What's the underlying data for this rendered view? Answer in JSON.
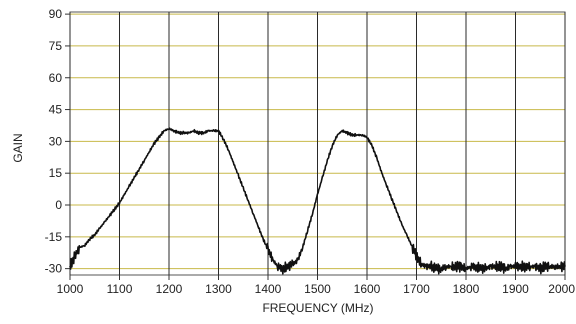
{
  "chart_data": {
    "type": "line",
    "title": "",
    "xlabel": "FREQUENCY (MHz)",
    "ylabel": "GAIN",
    "xlim": [
      1000,
      2000
    ],
    "ylim": [
      -33,
      91
    ],
    "x_ticks": [
      1000,
      1100,
      1200,
      1300,
      1400,
      1500,
      1600,
      1700,
      1800,
      1900,
      2000
    ],
    "y_ticks": [
      -30,
      -15,
      0,
      15,
      30,
      45,
      60,
      75,
      90
    ],
    "grid": true,
    "colors": {
      "plot_background": "#ffffff",
      "vertical_grid": "#2a2a2a",
      "horizontal_grid": "#c8b94a",
      "line": "#111111"
    },
    "series": [
      {
        "x": [
          1000,
          1010,
          1020,
          1030,
          1040,
          1050,
          1060,
          1070,
          1080,
          1090,
          1100,
          1110,
          1120,
          1130,
          1140,
          1150,
          1160,
          1170,
          1180,
          1190,
          1200,
          1210,
          1220,
          1230,
          1240,
          1250,
          1260,
          1270,
          1280,
          1290,
          1300,
          1310,
          1320,
          1330,
          1340,
          1350,
          1360,
          1370,
          1380,
          1390,
          1400,
          1410,
          1420,
          1430,
          1440,
          1450,
          1460,
          1470,
          1480,
          1490,
          1500,
          1510,
          1520,
          1530,
          1540,
          1550,
          1560,
          1570,
          1580,
          1590,
          1600,
          1610,
          1620,
          1630,
          1640,
          1650,
          1660,
          1670,
          1680,
          1690,
          1700,
          1710,
          1720,
          1730,
          1740,
          1750,
          1760,
          1770,
          1780,
          1790,
          1800,
          1810,
          1820,
          1830,
          1840,
          1850,
          1860,
          1870,
          1880,
          1890,
          1900,
          1910,
          1920,
          1930,
          1940,
          1950,
          1960,
          1970,
          1980,
          1990,
          2000
        ],
        "y": [
          -29,
          -24,
          -20,
          -19,
          -16,
          -14,
          -11,
          -8,
          -5,
          -2,
          1,
          5,
          9,
          13,
          17,
          21,
          25,
          29,
          32,
          35,
          36,
          35,
          34,
          34,
          34,
          35,
          34,
          34,
          35,
          35,
          35,
          31,
          26,
          20,
          14,
          8,
          2,
          -4,
          -10,
          -16,
          -21,
          -26,
          -29,
          -30,
          -29,
          -28,
          -26,
          -20,
          -12,
          -4,
          5,
          13,
          21,
          28,
          33,
          35,
          34,
          33,
          33,
          33,
          32,
          28,
          22,
          15,
          9,
          3,
          -3,
          -9,
          -14,
          -19,
          -24,
          -28,
          -29,
          -29,
          -30,
          -30,
          -29,
          -29,
          -29,
          -29,
          -30,
          -29,
          -29,
          -30,
          -30,
          -29,
          -29,
          -29,
          -30,
          -29,
          -29,
          -29,
          -29,
          -29,
          -29,
          -30,
          -29,
          -29,
          -29,
          -29,
          -29
        ]
      }
    ]
  }
}
